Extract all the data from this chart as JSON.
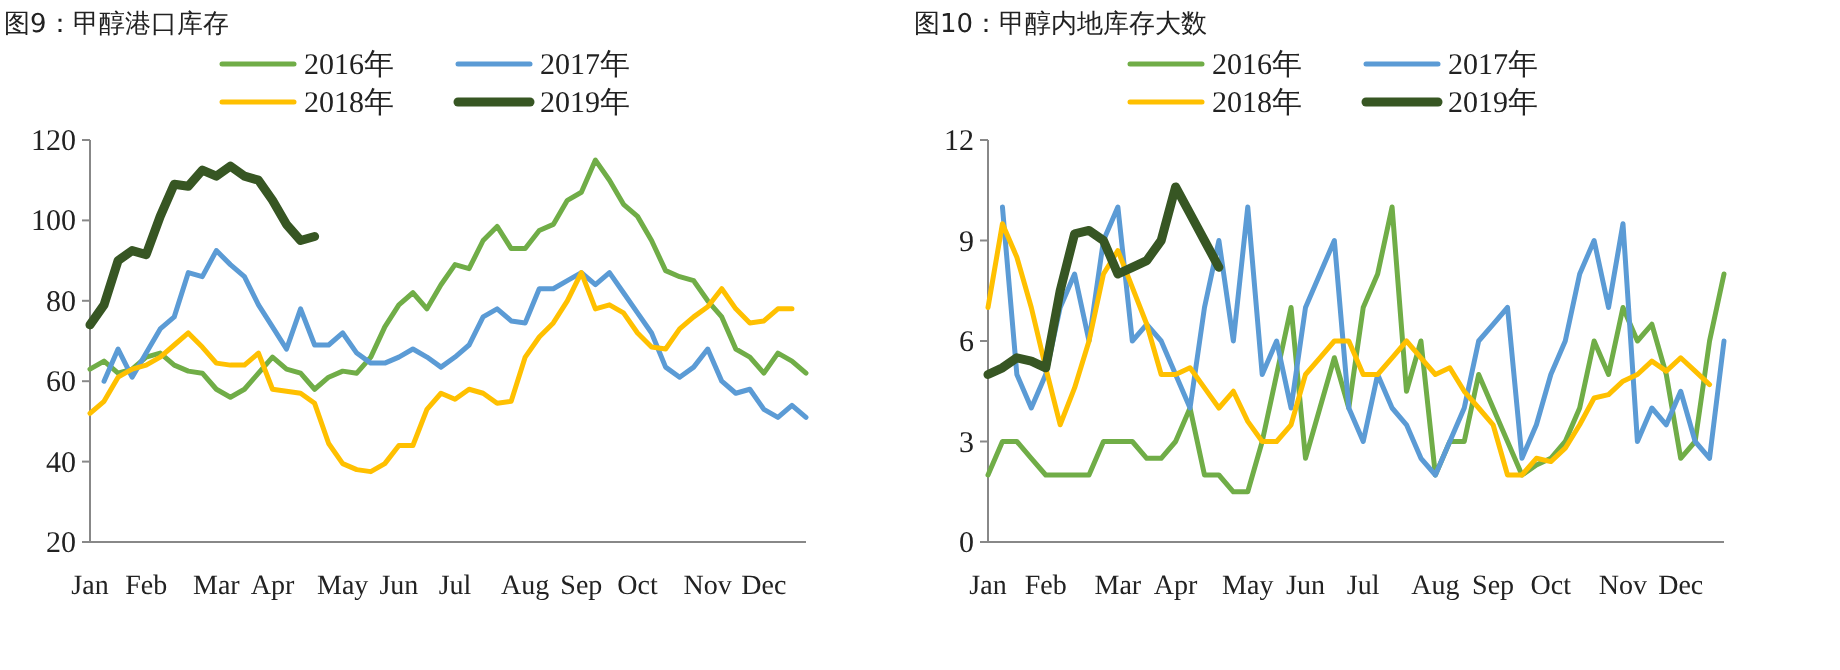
{
  "chart_data": [
    {
      "type": "line",
      "title": "图9：甲醇港口库存",
      "categories": [
        "Jan",
        null,
        null,
        null,
        "Feb",
        null,
        null,
        null,
        null,
        "Mar",
        null,
        null,
        null,
        "Apr",
        null,
        null,
        null,
        null,
        "May",
        null,
        null,
        null,
        "Jun",
        null,
        null,
        null,
        "Jul",
        null,
        null,
        null,
        null,
        "Aug",
        null,
        null,
        null,
        "Sep",
        null,
        null,
        null,
        "Oct",
        null,
        null,
        null,
        null,
        "Nov",
        null,
        null,
        null,
        "Dec",
        null,
        null,
        null
      ],
      "ylim": [
        20,
        120
      ],
      "yticks": [
        20,
        40,
        60,
        80,
        100,
        120
      ],
      "legend": "top",
      "series": [
        {
          "name": "2016年",
          "color": "#70ad47",
          "values": [
            63,
            65,
            62,
            63,
            66,
            67,
            64,
            62.5,
            62,
            58,
            56,
            58,
            62,
            66,
            63,
            62,
            58,
            61,
            62.5,
            62,
            66,
            73.5,
            79,
            82,
            78,
            84,
            89,
            88,
            95,
            98.5,
            93,
            93,
            97.5,
            99,
            105,
            107,
            115,
            110,
            104,
            101,
            95,
            87.5,
            86,
            85,
            80,
            76,
            68,
            66,
            62,
            67,
            65,
            62
          ]
        },
        {
          "name": "2017年",
          "color": "#5b9bd5",
          "values": [
            null,
            60,
            68,
            61,
            67,
            73,
            76,
            87,
            86,
            92.5,
            89,
            86,
            79,
            73.5,
            68,
            78,
            69,
            69,
            72,
            67,
            64.5,
            64.5,
            66,
            68,
            66,
            63.5,
            66,
            69,
            76,
            78,
            75,
            74.5,
            83,
            83,
            85,
            87,
            84,
            87,
            82,
            77,
            72,
            63.5,
            61,
            63.5,
            68,
            60,
            57,
            58,
            53,
            51,
            54,
            51
          ]
        },
        {
          "name": "2018年",
          "color": "#ffc000",
          "values": [
            52,
            55,
            61,
            63,
            64,
            66,
            69,
            72,
            68.5,
            64.5,
            64,
            64,
            67,
            58,
            57.5,
            57,
            54.5,
            44.5,
            39.5,
            38,
            37.5,
            39.5,
            44,
            44,
            53,
            57,
            55.5,
            58,
            57,
            54.5,
            55,
            66,
            71,
            74.5,
            80,
            87,
            78,
            79,
            77,
            72,
            68.5,
            68,
            73,
            76,
            78.5,
            83,
            78,
            74.5,
            75,
            78,
            78,
            null
          ]
        },
        {
          "name": "2019年",
          "color": "#375623",
          "values": [
            74,
            79,
            90,
            92.5,
            91.5,
            101,
            109,
            108.5,
            112.5,
            111,
            113.5,
            111,
            110,
            105,
            99,
            95,
            96,
            null,
            null,
            null,
            null,
            null,
            null,
            null,
            null,
            null,
            null,
            null,
            null,
            null,
            null,
            null,
            null,
            null,
            null,
            null,
            null,
            null,
            null,
            null,
            null,
            null,
            null,
            null,
            null,
            null,
            null,
            null,
            null,
            null,
            null,
            null
          ]
        }
      ]
    },
    {
      "type": "line",
      "title": "图10：甲醇内地库存大数",
      "categories": [
        "Jan",
        null,
        null,
        null,
        "Feb",
        null,
        null,
        null,
        null,
        "Mar",
        null,
        null,
        null,
        "Apr",
        null,
        null,
        null,
        null,
        "May",
        null,
        null,
        null,
        "Jun",
        null,
        null,
        null,
        "Jul",
        null,
        null,
        null,
        null,
        "Aug",
        null,
        null,
        null,
        "Sep",
        null,
        null,
        null,
        "Oct",
        null,
        null,
        null,
        null,
        "Nov",
        null,
        null,
        null,
        "Dec",
        null,
        null,
        null
      ],
      "ylim": [
        0,
        12
      ],
      "yticks": [
        0,
        3,
        6,
        9,
        12
      ],
      "legend": "top",
      "series": [
        {
          "name": "2016年",
          "color": "#70ad47",
          "values": [
            2,
            3,
            3,
            2.5,
            2,
            2,
            2,
            2,
            3,
            3,
            3,
            2.5,
            2.5,
            3,
            4,
            2,
            2,
            1.5,
            1.5,
            3,
            5,
            7,
            2.5,
            4,
            5.5,
            4,
            7,
            8,
            10,
            4.5,
            6,
            2,
            3,
            3,
            5,
            4,
            3,
            2,
            2.3,
            2.5,
            3,
            4,
            6,
            5,
            7,
            6,
            6.5,
            5,
            2.5,
            3,
            6,
            8
          ]
        },
        {
          "name": "2017年",
          "color": "#5b9bd5",
          "values": [
            null,
            10,
            5,
            4,
            5,
            7,
            8,
            6,
            9,
            10,
            6,
            6.5,
            6,
            5,
            4,
            7,
            9,
            6,
            10,
            5,
            6,
            4,
            7,
            8,
            9,
            4,
            3,
            5,
            4,
            3.5,
            2.5,
            2,
            3,
            4,
            6,
            6.5,
            7,
            2.5,
            3.5,
            5,
            6,
            8,
            9,
            7,
            9.5,
            3,
            4,
            3.5,
            4.5,
            3,
            2.5,
            6
          ]
        },
        {
          "name": "2018年",
          "color": "#ffc000",
          "values": [
            7,
            9.5,
            8.5,
            7,
            5.2,
            3.5,
            4.6,
            6,
            8,
            8.7,
            7.6,
            6.5,
            5,
            5,
            5.2,
            4.6,
            4,
            4.5,
            3.6,
            3,
            3,
            3.5,
            5,
            5.5,
            6,
            6,
            5,
            5,
            5.5,
            6,
            5.5,
            5,
            5.2,
            4.5,
            4,
            3.5,
            2,
            2,
            2.5,
            2.4,
            2.8,
            3.5,
            4.3,
            4.4,
            4.8,
            5,
            5.4,
            5.1,
            5.5,
            5.1,
            4.7,
            null
          ]
        },
        {
          "name": "2019年",
          "color": "#375623",
          "values": [
            5,
            5.2,
            5.5,
            5.4,
            5.2,
            7.5,
            9.2,
            9.3,
            9,
            8,
            8.2,
            8.4,
            9,
            10.6,
            9.8,
            9,
            8.2,
            null,
            null,
            null,
            null,
            null,
            null,
            null,
            null,
            null,
            null,
            null,
            null,
            null,
            null,
            null,
            null,
            null,
            null,
            null,
            null,
            null,
            null,
            null,
            null,
            null,
            null,
            null,
            null,
            null,
            null,
            null,
            null,
            null,
            null,
            null
          ]
        }
      ]
    }
  ]
}
